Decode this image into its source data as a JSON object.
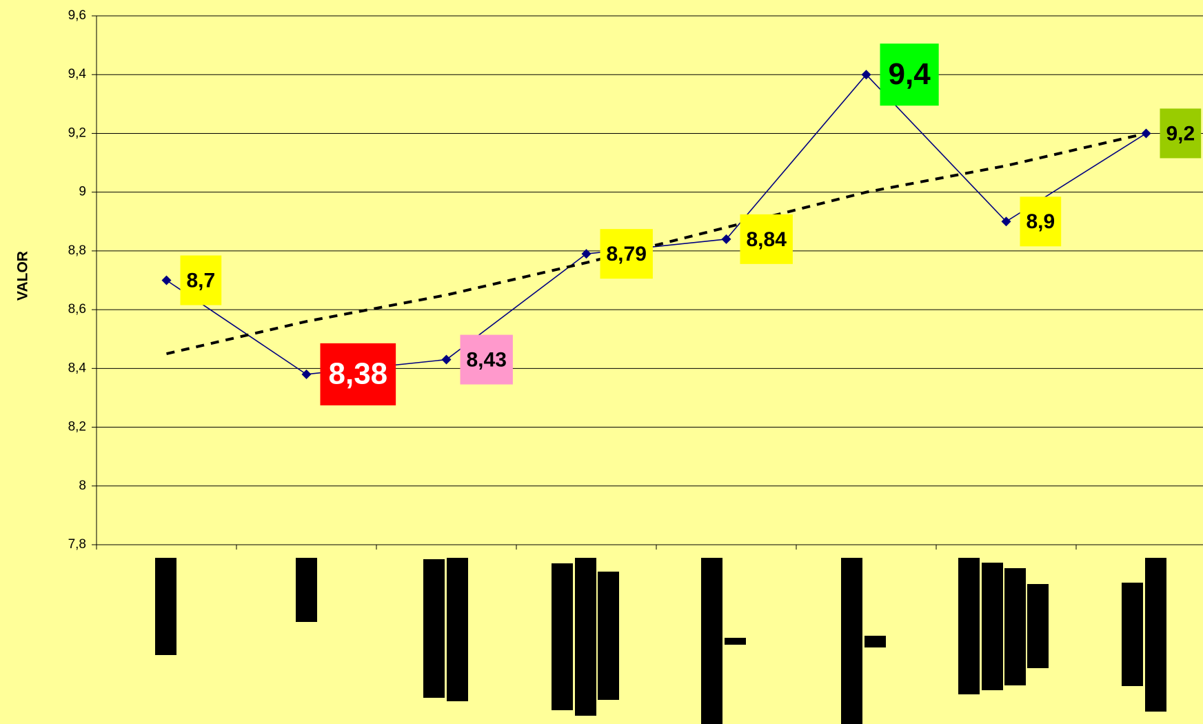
{
  "chart_data": {
    "type": "line",
    "y_label": "VALOR",
    "categories": [
      null,
      null,
      null,
      null,
      null,
      null,
      null,
      null
    ],
    "series": [
      {
        "color": "#000080",
        "values": [
          8.7,
          8.38,
          8.43,
          8.79,
          8.84,
          9.4,
          8.9,
          9.2
        ],
        "value_labels": [
          "8,7",
          "8,38",
          "8,43",
          "8,79",
          "8,84",
          "9,4",
          "8,9",
          "9,2"
        ],
        "label_colors": [
          "#ffff00",
          "#ff0000",
          "#ff99cc",
          "#ffff00",
          "#ffff00",
          "#00ff00",
          "#ffff00",
          "#99cc00"
        ],
        "label_text_colors": [
          "#000000",
          "#ffffff",
          "#000000",
          "#000000",
          "#000000",
          "#000000",
          "#000000",
          "#000000"
        ]
      }
    ],
    "trend": {
      "color": "#000000",
      "values": [
        8.45,
        8.56,
        8.65,
        8.76,
        8.88,
        9.0,
        9.09,
        9.2
      ]
    },
    "ylim": [
      7.8,
      9.6
    ],
    "yticks": [
      {
        "value": 7.8,
        "label": "7,8"
      },
      {
        "value": 8,
        "label": "8"
      },
      {
        "value": 8.2,
        "label": "8,2"
      },
      {
        "value": 8.4,
        "label": "8,4"
      },
      {
        "value": 8.6,
        "label": "8,6"
      },
      {
        "value": 8.8,
        "label": "8,8"
      },
      {
        "value": 9,
        "label": "9"
      },
      {
        "value": 9.2,
        "label": "9,2"
      },
      {
        "value": 9.4,
        "label": "9,4"
      },
      {
        "value": 9.6,
        "label": "9,6"
      }
    ],
    "grid": true
  }
}
